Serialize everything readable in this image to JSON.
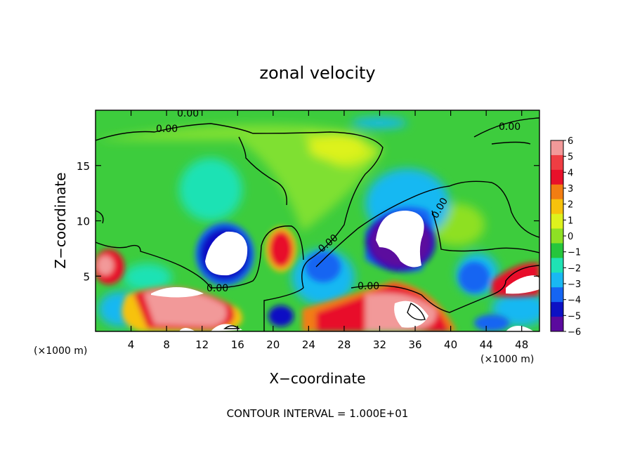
{
  "chart_data": {
    "type": "heatmap",
    "title": "zonal velocity",
    "xlabel": "X−coordinate",
    "ylabel": "Z−coordinate",
    "xunit": "(×1000 m)",
    "yunit": "(×1000 m)",
    "footer": "CONTOUR INTERVAL = 1.000E+01",
    "xlim": [
      0,
      50
    ],
    "ylim": [
      0,
      20
    ],
    "x_ticks": [
      "4",
      "8",
      "12",
      "16",
      "20",
      "24",
      "28",
      "32",
      "36",
      "40",
      "44",
      "48"
    ],
    "x_tick_values": [
      4,
      8,
      12,
      16,
      20,
      24,
      28,
      32,
      36,
      40,
      44,
      48
    ],
    "y_ticks": [
      "5",
      "10",
      "15"
    ],
    "y_tick_values": [
      5,
      10,
      15
    ],
    "colorbar": {
      "labels": [
        "6",
        "5",
        "4",
        "3",
        "2",
        "1",
        "0",
        "−1",
        "−2",
        "−3",
        "−4",
        "−5",
        "−6"
      ],
      "range": [
        -6,
        6
      ],
      "colors": [
        "#f29999",
        "#ef3d43",
        "#e8102a",
        "#f27d12",
        "#f7c20c",
        "#ddf21d",
        "#8ee024",
        "#25c63c",
        "#1fe2b4",
        "#19b8f2",
        "#1565f2",
        "#0d11c4",
        "#5b0a9e"
      ]
    },
    "contour_labels": [
      "0.00",
      "0.00",
      "0.00",
      "0.00",
      "0.00",
      "0.00"
    ],
    "notes_values": [
      {
        "x": 14,
        "z": 7.5,
        "value": "< -6"
      },
      {
        "x": 34,
        "z": 9.0,
        "value": "< -6"
      },
      {
        "x": 21,
        "z": 7.5,
        "value": "~ 5"
      },
      {
        "x": 26,
        "z": 18.0,
        "value": "~ 2"
      },
      {
        "x": 45,
        "z": 4.5,
        "value": "> 6"
      },
      {
        "x": 10,
        "z": 3.0,
        "value": "> 6"
      },
      {
        "x": 35,
        "z": 2.0,
        "value": "> 6"
      }
    ]
  }
}
